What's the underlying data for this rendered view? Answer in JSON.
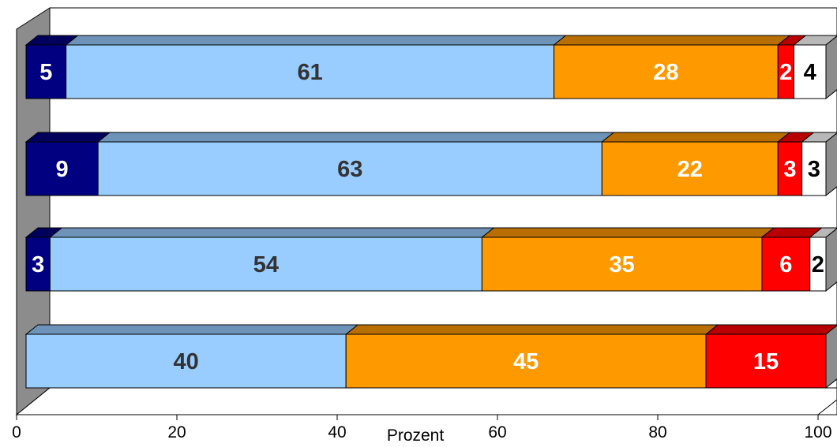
{
  "chart_data": {
    "type": "bar",
    "orientation": "horizontal",
    "stacked": true,
    "three_d": true,
    "xlabel": "Prozent",
    "xlim": [
      0,
      100
    ],
    "xticks": [
      "0",
      "20",
      "40",
      "60",
      "80",
      "100"
    ],
    "legend": "none",
    "grid": false,
    "series": [
      {
        "color": "#000080",
        "label_color": "#ffffff",
        "values": [
          5,
          9,
          3,
          0
        ]
      },
      {
        "color": "#99ccff",
        "label_color": "#333333",
        "values": [
          61,
          63,
          54,
          40
        ]
      },
      {
        "color": "#ff9900",
        "label_color": "#ffffff",
        "values": [
          28,
          22,
          35,
          45
        ]
      },
      {
        "color": "#ff0000",
        "label_color": "#ffffff",
        "values": [
          2,
          3,
          6,
          15
        ]
      },
      {
        "color": "#ffffff",
        "label_color": "#000000",
        "values": [
          4,
          3,
          2,
          0
        ]
      }
    ]
  }
}
